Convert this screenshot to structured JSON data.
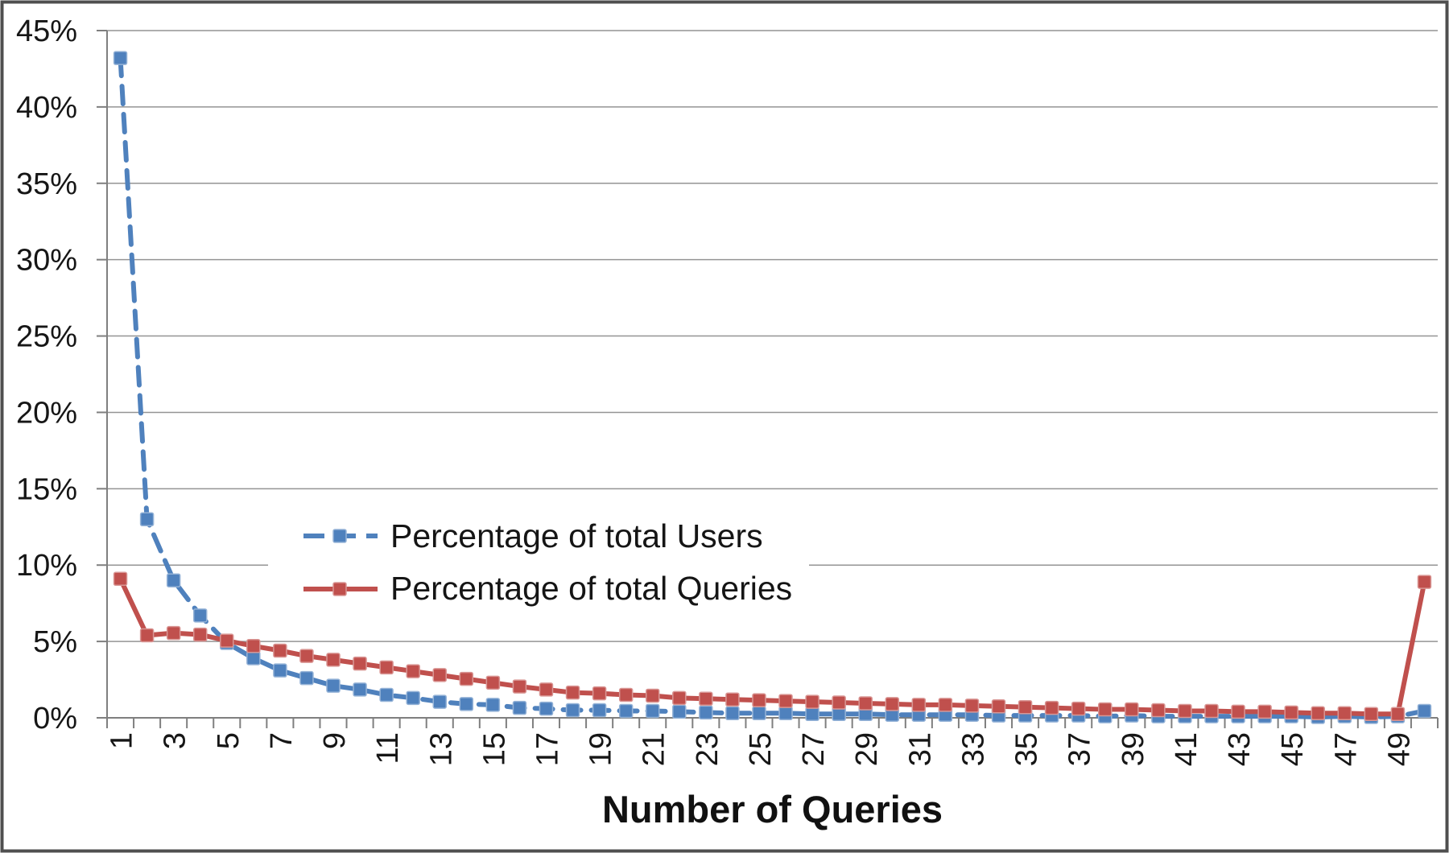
{
  "figure": {
    "kind": "line-chart"
  },
  "axes": {
    "x_title": "Number of Queries",
    "y_tick_labels": [
      "45%",
      "40%",
      "35%",
      "30%",
      "25%",
      "20%",
      "15%",
      "10%",
      "5%",
      "0%"
    ],
    "x_tick_labels": [
      "1",
      "3",
      "5",
      "7",
      "9",
      "11",
      "13",
      "15",
      "17",
      "19",
      "21",
      "23",
      "25",
      "27",
      "29",
      "31",
      "33",
      "35",
      "37",
      "39",
      "41",
      "43",
      "45",
      "47",
      "49"
    ]
  },
  "legend": {
    "items": [
      {
        "label": "Percentage of total Users",
        "color": "#4F81BD",
        "marker_edge": "#95B3D7",
        "style": "dashed",
        "marker": "square"
      },
      {
        "label": "Percentage of total Queries",
        "color": "#C0504D",
        "marker_edge": "#D99694",
        "style": "solid",
        "marker": "square"
      }
    ]
  },
  "chart_data": {
    "type": "line",
    "title": "",
    "xlabel": "Number of Queries",
    "ylabel": "",
    "ylim": [
      0,
      45
    ],
    "ytick_step": 5,
    "ytick_format": "percent",
    "grid": true,
    "legend_position": "inside-left-middle",
    "x": [
      1,
      2,
      3,
      4,
      5,
      6,
      7,
      8,
      9,
      10,
      11,
      12,
      13,
      14,
      15,
      16,
      17,
      18,
      19,
      20,
      21,
      22,
      23,
      24,
      25,
      26,
      27,
      28,
      29,
      30,
      31,
      32,
      33,
      34,
      35,
      36,
      37,
      38,
      39,
      40,
      41,
      42,
      43,
      44,
      45,
      46,
      47,
      48,
      49,
      50
    ],
    "series": [
      {
        "name": "Percentage of total Users",
        "color": "#4F81BD",
        "marker_edge": "#95B3D7",
        "dashed": true,
        "values": [
          43.2,
          13.0,
          9.0,
          6.7,
          4.9,
          3.9,
          3.1,
          2.6,
          2.1,
          1.85,
          1.5,
          1.3,
          1.05,
          0.9,
          0.85,
          0.65,
          0.6,
          0.5,
          0.5,
          0.45,
          0.45,
          0.4,
          0.35,
          0.3,
          0.3,
          0.3,
          0.25,
          0.25,
          0.25,
          0.2,
          0.2,
          0.2,
          0.2,
          0.15,
          0.15,
          0.15,
          0.15,
          0.1,
          0.15,
          0.1,
          0.1,
          0.1,
          0.1,
          0.1,
          0.1,
          0.05,
          0.1,
          0.05,
          0.1,
          0.45
        ]
      },
      {
        "name": "Percentage of total Queries",
        "color": "#C0504D",
        "marker_edge": "#D99694",
        "dashed": false,
        "values": [
          9.1,
          5.4,
          5.55,
          5.45,
          5.05,
          4.7,
          4.4,
          4.05,
          3.8,
          3.55,
          3.3,
          3.05,
          2.8,
          2.55,
          2.3,
          2.05,
          1.85,
          1.65,
          1.6,
          1.5,
          1.45,
          1.3,
          1.25,
          1.2,
          1.15,
          1.1,
          1.05,
          1.0,
          0.95,
          0.9,
          0.85,
          0.85,
          0.8,
          0.75,
          0.7,
          0.65,
          0.6,
          0.55,
          0.55,
          0.5,
          0.45,
          0.45,
          0.4,
          0.4,
          0.35,
          0.3,
          0.3,
          0.25,
          0.25,
          8.9
        ]
      }
    ]
  }
}
